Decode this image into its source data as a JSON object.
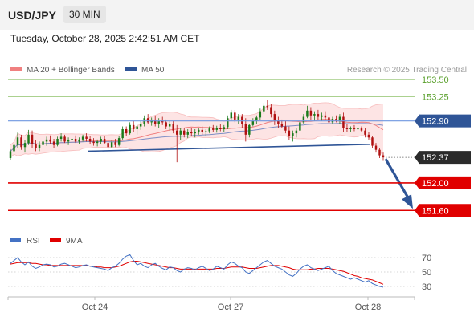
{
  "header": {
    "symbol": "USD/JPY",
    "timeframe": "30 MIN"
  },
  "datetime": "Tuesday, October 28, 2025 2:42:51 AM CET",
  "colors": {
    "ma20_bollinger": "#f08080",
    "bollinger_fill": "#fde4e4",
    "ma50": "#2f5597",
    "resistance_green": "#5aa02c",
    "support_red": "#e00000",
    "rsi": "#4472c4",
    "rsi_ma": "#e00000",
    "candle_up": "#1a7a1a",
    "candle_down": "#b01010",
    "forecast_arrow": "#2f5597"
  },
  "chart_data": [
    {
      "type": "candlestick",
      "title": "USD/JPY",
      "timeframe": "30 MIN",
      "credit": "Research © 2025 Trading Central",
      "legend": [
        {
          "name": "MA 20 + Bollinger Bands",
          "color": "#f08080"
        },
        {
          "name": "MA 50",
          "color": "#2f5597"
        }
      ],
      "x_ticks": [
        "Oct 24",
        "Oct 27",
        "Oct 28"
      ],
      "ylim": [
        151.3,
        153.7
      ],
      "levels": [
        {
          "label": "153.50",
          "value": 153.5,
          "kind": "resistance"
        },
        {
          "label": "153.25",
          "value": 153.25,
          "kind": "resistance"
        },
        {
          "label": "152.90",
          "value": 152.9,
          "kind": "pivot"
        },
        {
          "label": "152.37",
          "value": 152.37,
          "kind": "last"
        },
        {
          "label": "152.00",
          "value": 152.0,
          "kind": "support"
        },
        {
          "label": "151.60",
          "value": 151.6,
          "kind": "support"
        }
      ],
      "trendline": {
        "from": [
          110,
          152.46
        ],
        "to": [
          460,
          152.56
        ]
      },
      "ohlc": [
        [
          152.36,
          152.49,
          152.33,
          152.46
        ],
        [
          152.46,
          152.58,
          152.44,
          152.55
        ],
        [
          152.55,
          152.73,
          152.5,
          152.66
        ],
        [
          152.66,
          152.7,
          152.48,
          152.52
        ],
        [
          152.52,
          152.62,
          152.44,
          152.58
        ],
        [
          152.58,
          152.77,
          152.55,
          152.7
        ],
        [
          152.7,
          152.76,
          152.5,
          152.56
        ],
        [
          152.56,
          152.62,
          152.46,
          152.5
        ],
        [
          152.5,
          152.6,
          152.46,
          152.55
        ],
        [
          152.55,
          152.64,
          152.5,
          152.6
        ],
        [
          152.6,
          152.67,
          152.54,
          152.63
        ],
        [
          152.63,
          152.69,
          152.57,
          152.6
        ],
        [
          152.6,
          152.64,
          152.51,
          152.55
        ],
        [
          152.55,
          152.67,
          152.53,
          152.64
        ],
        [
          152.64,
          152.72,
          152.6,
          152.67
        ],
        [
          152.67,
          152.7,
          152.58,
          152.6
        ],
        [
          152.6,
          152.66,
          152.55,
          152.62
        ],
        [
          152.62,
          152.68,
          152.57,
          152.64
        ],
        [
          152.64,
          152.69,
          152.58,
          152.6
        ],
        [
          152.6,
          152.66,
          152.56,
          152.63
        ],
        [
          152.63,
          152.7,
          152.6,
          152.67
        ],
        [
          152.67,
          152.72,
          152.6,
          152.64
        ],
        [
          152.64,
          152.68,
          152.56,
          152.6
        ],
        [
          152.6,
          152.65,
          152.54,
          152.58
        ],
        [
          152.58,
          152.63,
          152.53,
          152.6
        ],
        [
          152.6,
          152.67,
          152.57,
          152.64
        ],
        [
          152.64,
          152.68,
          152.56,
          152.58
        ],
        [
          152.58,
          152.62,
          152.48,
          152.52
        ],
        [
          152.52,
          152.62,
          152.5,
          152.59
        ],
        [
          152.59,
          152.64,
          152.52,
          152.55
        ],
        [
          152.55,
          152.68,
          152.53,
          152.65
        ],
        [
          152.65,
          152.82,
          152.63,
          152.78
        ],
        [
          152.78,
          152.82,
          152.68,
          152.72
        ],
        [
          152.72,
          152.88,
          152.7,
          152.84
        ],
        [
          152.84,
          152.9,
          152.74,
          152.78
        ],
        [
          152.78,
          152.86,
          152.7,
          152.82
        ],
        [
          152.82,
          152.9,
          152.77,
          152.85
        ],
        [
          152.85,
          152.98,
          152.82,
          152.94
        ],
        [
          152.94,
          153.0,
          152.85,
          152.88
        ],
        [
          152.88,
          152.95,
          152.83,
          152.92
        ],
        [
          152.92,
          152.98,
          152.82,
          152.86
        ],
        [
          152.86,
          152.94,
          152.8,
          152.9
        ],
        [
          152.9,
          152.96,
          152.84,
          152.88
        ],
        [
          152.88,
          152.92,
          152.78,
          152.82
        ],
        [
          152.82,
          152.9,
          152.76,
          152.85
        ],
        [
          152.85,
          152.9,
          152.72,
          152.76
        ],
        [
          152.76,
          152.84,
          152.3,
          152.7
        ],
        [
          152.7,
          152.8,
          152.62,
          152.76
        ],
        [
          152.76,
          152.8,
          152.66,
          152.7
        ],
        [
          152.7,
          152.78,
          152.65,
          152.74
        ],
        [
          152.74,
          152.8,
          152.68,
          152.72
        ],
        [
          152.72,
          152.78,
          152.66,
          152.74
        ],
        [
          152.74,
          152.8,
          152.7,
          152.77
        ],
        [
          152.77,
          152.82,
          152.7,
          152.74
        ],
        [
          152.74,
          152.78,
          152.68,
          152.75
        ],
        [
          152.75,
          152.82,
          152.72,
          152.79
        ],
        [
          152.79,
          152.84,
          152.74,
          152.77
        ],
        [
          152.77,
          152.83,
          152.73,
          152.8
        ],
        [
          152.8,
          152.86,
          152.75,
          152.78
        ],
        [
          152.78,
          152.84,
          152.74,
          152.81
        ],
        [
          152.81,
          152.98,
          152.78,
          152.94
        ],
        [
          152.94,
          153.06,
          152.9,
          153.02
        ],
        [
          153.02,
          153.06,
          152.88,
          152.92
        ],
        [
          152.92,
          153.0,
          152.86,
          152.96
        ],
        [
          152.96,
          153.0,
          152.8,
          152.86
        ],
        [
          152.86,
          152.94,
          152.6,
          152.7
        ],
        [
          152.7,
          152.86,
          152.66,
          152.84
        ],
        [
          152.84,
          152.94,
          152.82,
          152.9
        ],
        [
          152.9,
          152.98,
          152.86,
          152.95
        ],
        [
          152.95,
          153.08,
          152.92,
          153.04
        ],
        [
          153.04,
          153.16,
          153.0,
          153.12
        ],
        [
          153.12,
          153.2,
          153.06,
          153.1
        ],
        [
          153.1,
          153.15,
          152.95,
          153.0
        ],
        [
          153.0,
          153.05,
          152.84,
          152.9
        ],
        [
          152.9,
          152.96,
          152.8,
          152.86
        ],
        [
          152.86,
          152.92,
          152.8,
          152.82
        ],
        [
          152.82,
          152.9,
          152.72,
          152.76
        ],
        [
          152.76,
          152.82,
          152.62,
          152.68
        ],
        [
          152.68,
          152.76,
          152.6,
          152.72
        ],
        [
          152.72,
          152.8,
          152.66,
          152.76
        ],
        [
          152.76,
          152.92,
          152.74,
          152.88
        ],
        [
          152.88,
          153.0,
          152.86,
          152.96
        ],
        [
          152.96,
          153.12,
          152.94,
          153.05
        ],
        [
          153.05,
          153.1,
          152.92,
          152.98
        ],
        [
          152.98,
          153.04,
          152.9,
          153.0
        ],
        [
          153.0,
          153.06,
          152.92,
          152.96
        ],
        [
          152.96,
          153.02,
          152.9,
          152.98
        ],
        [
          152.98,
          153.04,
          152.92,
          152.95
        ],
        [
          152.95,
          152.98,
          152.84,
          152.88
        ],
        [
          152.88,
          152.96,
          152.85,
          152.93
        ],
        [
          152.93,
          152.98,
          152.88,
          152.9
        ],
        [
          152.9,
          153.0,
          152.85,
          152.96
        ],
        [
          152.96,
          153.02,
          152.74,
          152.8
        ],
        [
          152.8,
          152.85,
          152.74,
          152.78
        ],
        [
          152.78,
          152.82,
          152.74,
          152.8
        ],
        [
          152.8,
          152.84,
          152.75,
          152.78
        ],
        [
          152.78,
          152.82,
          152.73,
          152.79
        ],
        [
          152.79,
          152.82,
          152.74,
          152.76
        ],
        [
          152.76,
          152.8,
          152.66,
          152.7
        ],
        [
          152.7,
          152.74,
          152.62,
          152.66
        ],
        [
          152.66,
          152.68,
          152.5,
          152.54
        ],
        [
          152.54,
          152.58,
          152.44,
          152.48
        ],
        [
          152.48,
          152.5,
          152.36,
          152.4
        ],
        [
          152.4,
          152.44,
          152.32,
          152.37
        ]
      ]
    },
    {
      "type": "line",
      "title": "RSI",
      "legend": [
        {
          "name": "RSI",
          "color": "#4472c4"
        },
        {
          "name": "9MA",
          "color": "#e00000"
        }
      ],
      "y_ticks": [
        70,
        50,
        30
      ],
      "ylim": [
        20,
        80
      ],
      "series": [
        {
          "name": "RSI",
          "values": [
            62,
            66,
            70,
            64,
            60,
            64,
            58,
            55,
            57,
            60,
            61,
            60,
            57,
            58,
            61,
            62,
            60,
            58,
            56,
            57,
            59,
            60,
            58,
            57,
            56,
            55,
            54,
            52,
            56,
            58,
            62,
            68,
            72,
            74,
            66,
            60,
            62,
            58,
            56,
            60,
            62,
            58,
            55,
            53,
            57,
            56,
            52,
            50,
            54,
            56,
            55,
            53,
            56,
            58,
            55,
            52,
            54,
            58,
            56,
            54,
            60,
            64,
            62,
            58,
            56,
            50,
            48,
            52,
            56,
            60,
            64,
            66,
            62,
            58,
            56,
            54,
            50,
            46,
            44,
            48,
            54,
            58,
            60,
            56,
            54,
            52,
            54,
            56,
            58,
            52,
            48,
            46,
            44,
            42,
            40,
            42,
            40,
            38,
            36,
            38,
            34,
            32,
            30,
            29
          ]
        },
        {
          "name": "9MA",
          "values": [
            61,
            62,
            63,
            63,
            63,
            63,
            62,
            62,
            61,
            60,
            60,
            59,
            59,
            59,
            59,
            59,
            59,
            59,
            59,
            59,
            59,
            59,
            58,
            58,
            57,
            57,
            56,
            56,
            56,
            57,
            58,
            60,
            62,
            64,
            65,
            65,
            64,
            63,
            62,
            61,
            60,
            59,
            58,
            57,
            56,
            56,
            55,
            54,
            54,
            54,
            54,
            54,
            54,
            54,
            54,
            54,
            54,
            55,
            55,
            55,
            56,
            57,
            57,
            57,
            57,
            56,
            55,
            55,
            55,
            56,
            57,
            58,
            59,
            59,
            59,
            58,
            57,
            56,
            54,
            53,
            53,
            53,
            53,
            54,
            54,
            55,
            55,
            55,
            55,
            54,
            53,
            52,
            51,
            49,
            47,
            45,
            44,
            42,
            41,
            40,
            39,
            37,
            35,
            33
          ]
        }
      ]
    }
  ]
}
